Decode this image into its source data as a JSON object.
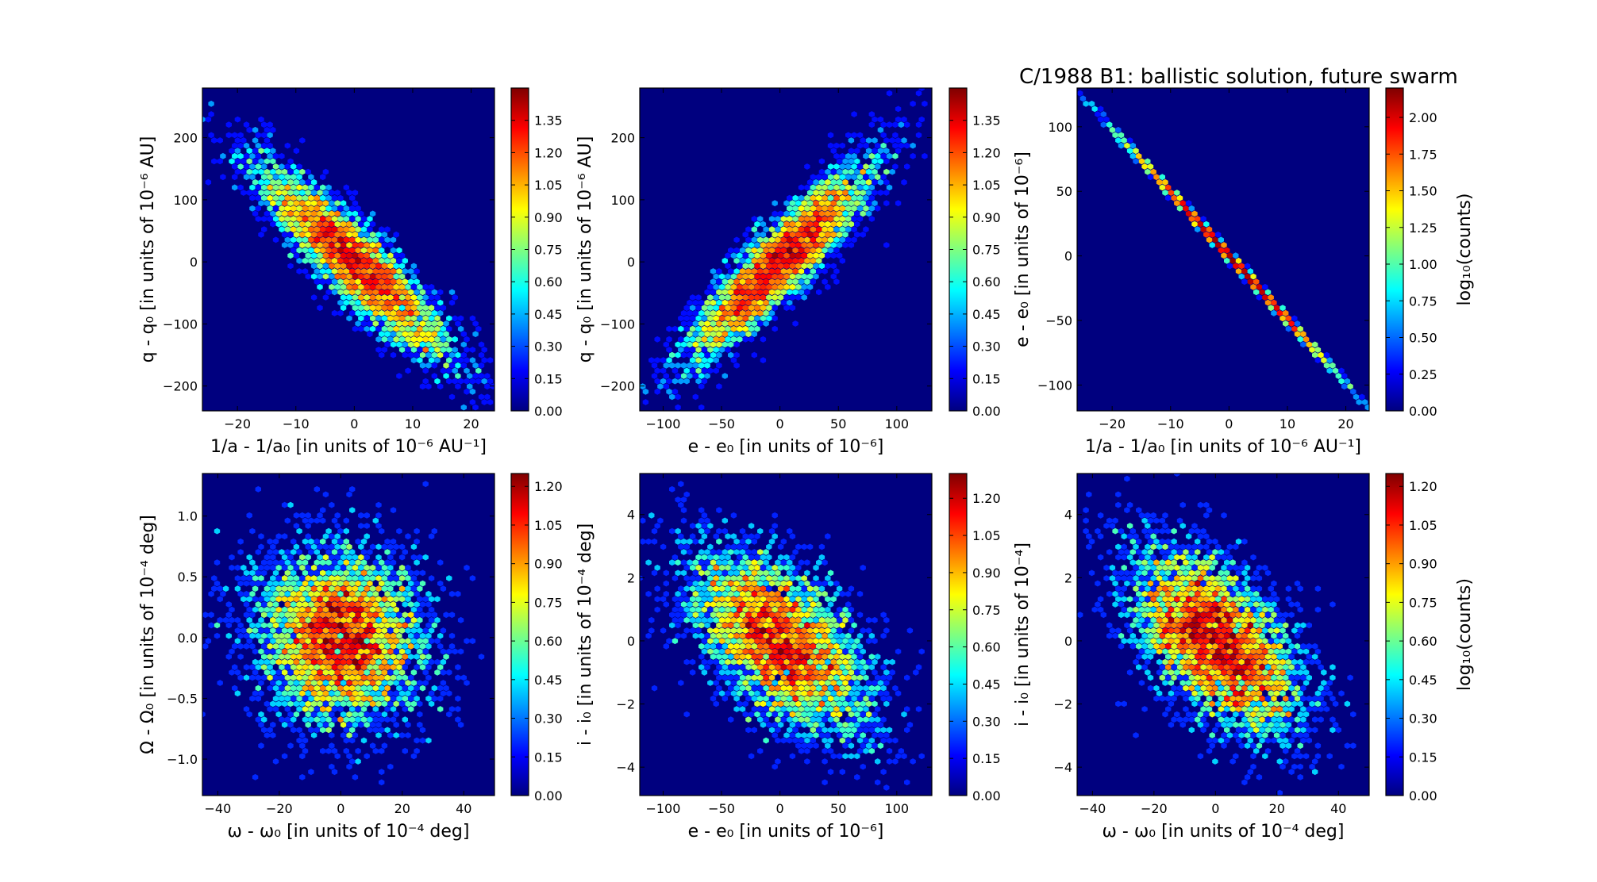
{
  "title": "C/1988 B1:  ballistic solution, future swarm",
  "colormap": [
    "#00007f",
    "#0000ff",
    "#007fff",
    "#00ffff",
    "#7fff7f",
    "#ffff00",
    "#ff7f00",
    "#ff0000",
    "#7f0000"
  ],
  "colors": {
    "background": "#00007f",
    "text": "#000000"
  },
  "chart_data": [
    {
      "type": "heatmap",
      "variant": "hexbin",
      "xlabel": "1/a - 1/a₀ [in units of 10⁻⁶ AU⁻¹]",
      "ylabel": "q - q₀ [in units of 10⁻⁶ AU]",
      "xlim": [
        -26,
        24
      ],
      "ylim": [
        -240,
        280
      ],
      "xticks": [
        -20,
        -10,
        0,
        10,
        20
      ],
      "xticklabels": [
        "−20",
        "−10",
        "0",
        "10",
        "20"
      ],
      "yticks": [
        -200,
        -100,
        0,
        100,
        200
      ],
      "yticklabels": [
        "−200",
        "−100",
        "0",
        "100",
        "200"
      ],
      "distribution": {
        "sx": 8.5,
        "sy": 80,
        "rho": -0.9,
        "n": 4500
      },
      "colorbar": {
        "max": 1.5,
        "ticks": [
          0.0,
          0.15,
          0.3,
          0.45,
          0.6,
          0.75,
          0.9,
          1.05,
          1.2,
          1.35
        ],
        "ticklabels": [
          "0.00",
          "0.15",
          "0.30",
          "0.45",
          "0.60",
          "0.75",
          "0.90",
          "1.05",
          "1.20",
          "1.35"
        ],
        "label": ""
      }
    },
    {
      "type": "heatmap",
      "variant": "hexbin",
      "xlabel": "e - e₀ [in units of 10⁻⁶]",
      "ylabel": "q - q₀ [in units of 10⁻⁶ AU]",
      "xlim": [
        -120,
        130
      ],
      "ylim": [
        -240,
        280
      ],
      "xticks": [
        -100,
        -50,
        0,
        50,
        100
      ],
      "xticklabels": [
        "−100",
        "−50",
        "0",
        "50",
        "100"
      ],
      "yticks": [
        -200,
        -100,
        0,
        100,
        200
      ],
      "yticklabels": [
        "−200",
        "−100",
        "0",
        "100",
        "200"
      ],
      "distribution": {
        "sx": 40,
        "sy": 80,
        "rho": 0.9,
        "n": 4500
      },
      "colorbar": {
        "max": 1.5,
        "ticks": [
          0.0,
          0.15,
          0.3,
          0.45,
          0.6,
          0.75,
          0.9,
          1.05,
          1.2,
          1.35
        ],
        "ticklabels": [
          "0.00",
          "0.15",
          "0.30",
          "0.45",
          "0.60",
          "0.75",
          "0.90",
          "1.05",
          "1.20",
          "1.35"
        ],
        "label": ""
      }
    },
    {
      "type": "heatmap",
      "variant": "hexbin",
      "xlabel": "1/a - 1/a₀ [in units of 10⁻⁶ AU⁻¹]",
      "ylabel": "e - e₀ [in units of 10⁻⁶]",
      "xlim": [
        -26,
        24
      ],
      "ylim": [
        -120,
        130
      ],
      "xticks": [
        -20,
        -10,
        0,
        10,
        20
      ],
      "xticklabels": [
        "−20",
        "−10",
        "0",
        "10",
        "20"
      ],
      "yticks": [
        -100,
        -50,
        0,
        50,
        100
      ],
      "yticklabels": [
        "−100",
        "−50",
        "0",
        "50",
        "100"
      ],
      "distribution": {
        "sx": 8.5,
        "sy": 42,
        "rho": -0.9995,
        "n": 4500,
        "line": true
      },
      "colorbar": {
        "max": 2.2,
        "ticks": [
          0.0,
          0.25,
          0.5,
          0.75,
          1.0,
          1.25,
          1.5,
          1.75,
          2.0
        ],
        "ticklabels": [
          "0.00",
          "0.25",
          "0.50",
          "0.75",
          "1.00",
          "1.25",
          "1.50",
          "1.75",
          "2.00"
        ],
        "label": "log₁₀(counts)"
      }
    },
    {
      "type": "heatmap",
      "variant": "hexbin",
      "xlabel": "ω - ω₀ [in units of 10⁻⁴ deg]",
      "ylabel": "Ω - Ω₀ [in units of 10⁻⁴ deg]",
      "xlim": [
        -45,
        50
      ],
      "ylim": [
        -1.3,
        1.35
      ],
      "xticks": [
        -40,
        -20,
        0,
        20,
        40
      ],
      "xticklabels": [
        "−40",
        "−20",
        "0",
        "20",
        "40"
      ],
      "yticks": [
        -1.0,
        -0.5,
        0.0,
        0.5,
        1.0
      ],
      "yticklabels": [
        "−1.0",
        "−0.5",
        "0.0",
        "0.5",
        "1.0"
      ],
      "distribution": {
        "sx": 14,
        "sy": 0.38,
        "rho": -0.05,
        "n": 4500
      },
      "colorbar": {
        "max": 1.25,
        "ticks": [
          0.0,
          0.15,
          0.3,
          0.45,
          0.6,
          0.75,
          0.9,
          1.05,
          1.2
        ],
        "ticklabels": [
          "0.00",
          "0.15",
          "0.30",
          "0.45",
          "0.60",
          "0.75",
          "0.90",
          "1.05",
          "1.20"
        ],
        "label": ""
      }
    },
    {
      "type": "heatmap",
      "variant": "hexbin",
      "xlabel": "e - e₀ [in units of 10⁻⁶]",
      "ylabel": "i - i₀ [in units of 10⁻⁴ deg]",
      "xlim": [
        -120,
        130
      ],
      "ylim": [
        -4.9,
        5.3
      ],
      "xticks": [
        -100,
        -50,
        0,
        50,
        100
      ],
      "xticklabels": [
        "−100",
        "−50",
        "0",
        "50",
        "100"
      ],
      "yticks": [
        -4,
        -2,
        0,
        2,
        4
      ],
      "yticklabels": [
        "−4",
        "−2",
        "0",
        "2",
        "4"
      ],
      "distribution": {
        "sx": 40,
        "sy": 1.5,
        "rho": -0.55,
        "n": 4500
      },
      "colorbar": {
        "max": 1.3,
        "ticks": [
          0.0,
          0.15,
          0.3,
          0.45,
          0.6,
          0.75,
          0.9,
          1.05,
          1.2
        ],
        "ticklabels": [
          "0.00",
          "0.15",
          "0.30",
          "0.45",
          "0.60",
          "0.75",
          "0.90",
          "1.05",
          "1.20"
        ],
        "label": ""
      }
    },
    {
      "type": "heatmap",
      "variant": "hexbin",
      "xlabel": "ω - ω₀ [in units of 10⁻⁴ deg]",
      "ylabel": "i - i₀ [in units of 10⁻⁴]",
      "xlim": [
        -45,
        50
      ],
      "ylim": [
        -4.9,
        5.3
      ],
      "xticks": [
        -40,
        -20,
        0,
        20,
        40
      ],
      "xticklabels": [
        "−40",
        "−20",
        "0",
        "20",
        "40"
      ],
      "yticks": [
        -4,
        -2,
        0,
        2,
        4
      ],
      "yticklabels": [
        "−4",
        "−2",
        "0",
        "2",
        "4"
      ],
      "distribution": {
        "sx": 14,
        "sy": 1.5,
        "rho": -0.55,
        "n": 4500
      },
      "colorbar": {
        "max": 1.25,
        "ticks": [
          0.0,
          0.15,
          0.3,
          0.45,
          0.6,
          0.75,
          0.9,
          1.05,
          1.2
        ],
        "ticklabels": [
          "0.00",
          "0.15",
          "0.30",
          "0.45",
          "0.60",
          "0.75",
          "0.90",
          "1.05",
          "1.20"
        ],
        "label": "log₁₀(counts)"
      }
    }
  ]
}
